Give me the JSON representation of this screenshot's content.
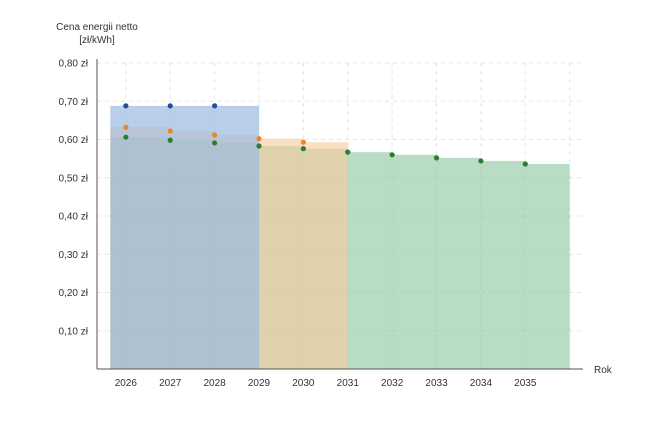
{
  "chart_data": {
    "type": "area",
    "title": "",
    "ylabel": "Cena energii netto",
    "yunit": "[zł/kWh]",
    "xlabel": "Rok",
    "categories": [
      "2026",
      "2027",
      "2028",
      "2029",
      "2030",
      "2031",
      "2032",
      "2033",
      "2034",
      "2035"
    ],
    "x_boundaries": [
      2026,
      2027,
      2028,
      2029,
      2030,
      2031,
      2032,
      2033,
      2034,
      2035,
      2036
    ],
    "yticks": [
      {
        "value": 0.1,
        "label": "0,10 zł"
      },
      {
        "value": 0.2,
        "label": "0,20 zł"
      },
      {
        "value": 0.3,
        "label": "0,30 zł"
      },
      {
        "value": 0.4,
        "label": "0,40 zł"
      },
      {
        "value": 0.5,
        "label": "0,50 zł"
      },
      {
        "value": 0.6,
        "label": "0,60 zł"
      },
      {
        "value": 0.7,
        "label": "0,70 zł"
      },
      {
        "value": 0.8,
        "label": "0,80 zł"
      }
    ],
    "ylim": [
      0,
      0.8
    ],
    "xlim": [
      2025.35,
      2036.3
    ],
    "grid": true,
    "series": [
      {
        "color": "#1f4e9c",
        "fill": "#9bbbe0",
        "fill_opacity": 0.7,
        "x": [
          2026,
          2027,
          2028
        ],
        "values": [
          0.688,
          0.688,
          0.688
        ],
        "area_from": 2025.65,
        "area_to": 2029,
        "area_top": 0.688
      },
      {
        "color": "#e8862a",
        "fill": "#f7c99a",
        "fill_opacity": 0.6,
        "x": [
          2026,
          2027,
          2028,
          2029,
          2030
        ],
        "values": [
          0.632,
          0.622,
          0.612,
          0.602,
          0.593
        ],
        "area_from": 2025.65,
        "area_to": 2031,
        "area_top": 0.593
      },
      {
        "color": "#2e7d32",
        "fill": "#7fbf95",
        "fill_opacity": 0.55,
        "x": [
          2026,
          2027,
          2028,
          2029,
          2030,
          2031,
          2032,
          2033,
          2034,
          2035
        ],
        "values": [
          0.606,
          0.598,
          0.591,
          0.583,
          0.576,
          0.567,
          0.56,
          0.552,
          0.544,
          0.536
        ],
        "area_from": 2025.65,
        "area_to": 2036,
        "area_top": 0.536
      }
    ]
  }
}
